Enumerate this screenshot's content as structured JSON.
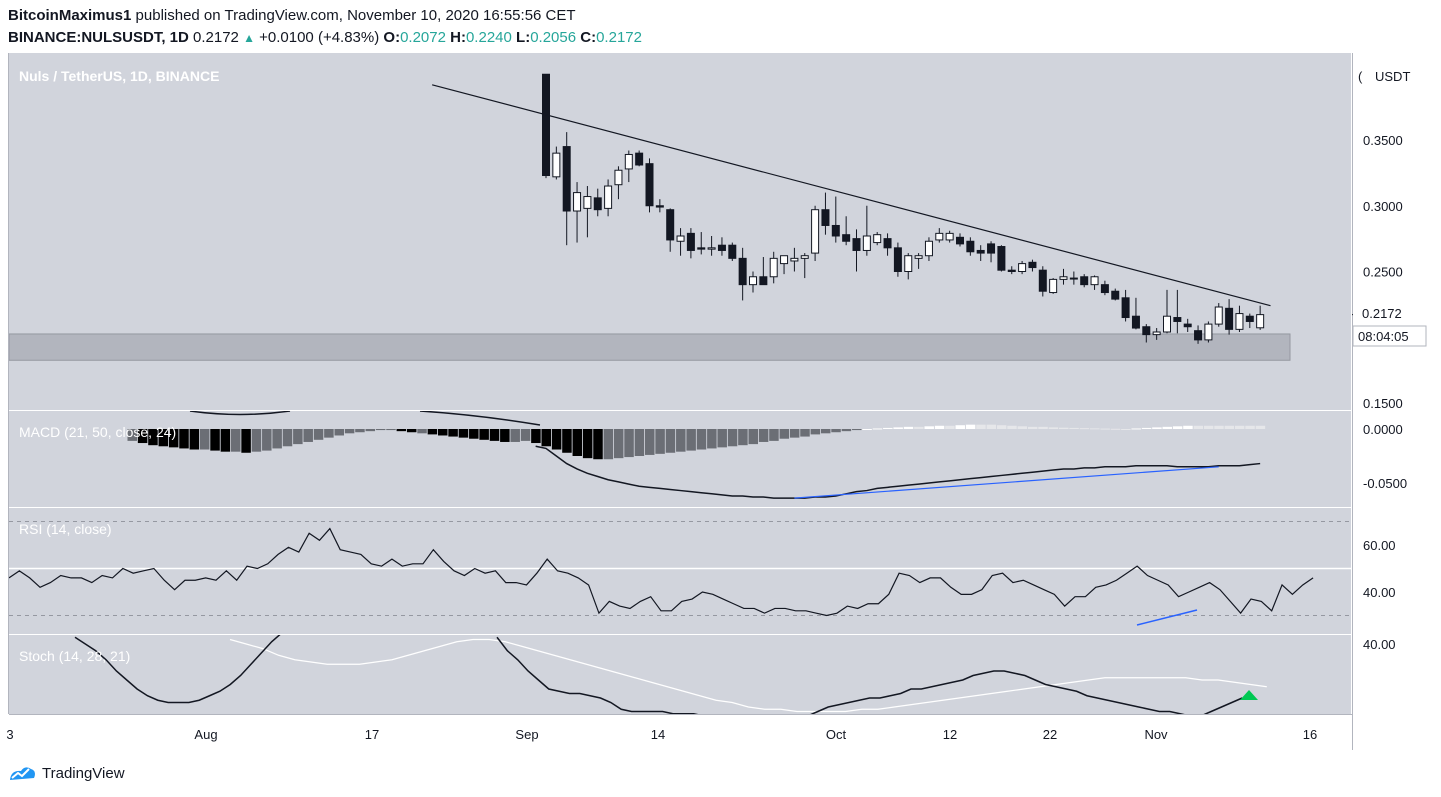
{
  "header": {
    "author": "BitcoinMaximus1",
    "published_text": "published on TradingView.com, November 10, 2020 16:55:56 CET",
    "symbol": "BINANCE:NULSUSDT, 1D",
    "last": "0.2172",
    "change": "+0.0100 (+4.83%)",
    "open_label": "O:",
    "open": "0.2072",
    "high_label": "H:",
    "high": "0.2240",
    "low_label": "L:",
    "low": "0.2056",
    "close_label": "C:",
    "close": "0.2172"
  },
  "footer": {
    "brand": "TradingView"
  },
  "colors": {
    "pane_bg": "#d1d4dc",
    "band": "#b2b5be",
    "up": "#ffffff",
    "down": "#131722",
    "divergence": "#2962ff",
    "signal_arrow": "#00c853",
    "stoch_d": "#ffffff"
  },
  "chart_data": [
    {
      "type": "candlestick",
      "title": "Nuls / TetherUS, 1D, BINANCE",
      "ylabel": "USDT",
      "ylim": [
        0.15,
        0.365
      ],
      "y_ticks": [
        "0.3500",
        "0.3000",
        "0.2500",
        "0.1500"
      ],
      "x_ticks": [
        "3",
        "Aug",
        "17",
        "Sep",
        "14",
        "Oct",
        "12",
        "22",
        "Nov",
        "16"
      ],
      "last_price_label": "0.2172",
      "countdown": "08:04:05",
      "candles_start_date": "2020-09-02",
      "candles_end_date": "2020-11-10",
      "candles": [
        {
          "o": 0.4,
          "h": 0.4,
          "l": 0.321,
          "c": 0.323
        },
        {
          "o": 0.322,
          "h": 0.345,
          "l": 0.32,
          "c": 0.34
        },
        {
          "o": 0.345,
          "h": 0.356,
          "l": 0.27,
          "c": 0.296
        },
        {
          "o": 0.296,
          "h": 0.318,
          "l": 0.272,
          "c": 0.31
        },
        {
          "o": 0.298,
          "h": 0.315,
          "l": 0.276,
          "c": 0.307
        },
        {
          "o": 0.306,
          "h": 0.313,
          "l": 0.292,
          "c": 0.297
        },
        {
          "o": 0.298,
          "h": 0.32,
          "l": 0.292,
          "c": 0.315
        },
        {
          "o": 0.316,
          "h": 0.33,
          "l": 0.305,
          "c": 0.327
        },
        {
          "o": 0.328,
          "h": 0.342,
          "l": 0.318,
          "c": 0.339
        },
        {
          "o": 0.34,
          "h": 0.342,
          "l": 0.33,
          "c": 0.331
        },
        {
          "o": 0.332,
          "h": 0.336,
          "l": 0.295,
          "c": 0.3
        },
        {
          "o": 0.3,
          "h": 0.305,
          "l": 0.295,
          "c": 0.299
        },
        {
          "o": 0.297,
          "h": 0.298,
          "l": 0.265,
          "c": 0.274
        },
        {
          "o": 0.273,
          "h": 0.283,
          "l": 0.262,
          "c": 0.277
        },
        {
          "o": 0.279,
          "h": 0.283,
          "l": 0.26,
          "c": 0.266
        },
        {
          "o": 0.268,
          "h": 0.28,
          "l": 0.263,
          "c": 0.267
        },
        {
          "o": 0.267,
          "h": 0.277,
          "l": 0.262,
          "c": 0.268
        },
        {
          "o": 0.27,
          "h": 0.276,
          "l": 0.262,
          "c": 0.266
        },
        {
          "o": 0.27,
          "h": 0.272,
          "l": 0.258,
          "c": 0.26
        },
        {
          "o": 0.26,
          "h": 0.268,
          "l": 0.228,
          "c": 0.24
        },
        {
          "o": 0.24,
          "h": 0.25,
          "l": 0.234,
          "c": 0.246
        },
        {
          "o": 0.246,
          "h": 0.261,
          "l": 0.24,
          "c": 0.24
        },
        {
          "o": 0.246,
          "h": 0.265,
          "l": 0.241,
          "c": 0.26
        },
        {
          "o": 0.256,
          "h": 0.262,
          "l": 0.248,
          "c": 0.262
        },
        {
          "o": 0.258,
          "h": 0.268,
          "l": 0.25,
          "c": 0.26
        },
        {
          "o": 0.26,
          "h": 0.264,
          "l": 0.245,
          "c": 0.262
        },
        {
          "o": 0.264,
          "h": 0.3,
          "l": 0.258,
          "c": 0.297
        },
        {
          "o": 0.297,
          "h": 0.31,
          "l": 0.278,
          "c": 0.285
        },
        {
          "o": 0.285,
          "h": 0.307,
          "l": 0.272,
          "c": 0.277
        },
        {
          "o": 0.278,
          "h": 0.292,
          "l": 0.27,
          "c": 0.273
        },
        {
          "o": 0.275,
          "h": 0.282,
          "l": 0.25,
          "c": 0.266
        },
        {
          "o": 0.266,
          "h": 0.3,
          "l": 0.262,
          "c": 0.277
        },
        {
          "o": 0.272,
          "h": 0.28,
          "l": 0.27,
          "c": 0.278
        },
        {
          "o": 0.275,
          "h": 0.279,
          "l": 0.262,
          "c": 0.268
        },
        {
          "o": 0.268,
          "h": 0.272,
          "l": 0.246,
          "c": 0.25
        },
        {
          "o": 0.25,
          "h": 0.264,
          "l": 0.244,
          "c": 0.262
        },
        {
          "o": 0.26,
          "h": 0.264,
          "l": 0.252,
          "c": 0.262
        },
        {
          "o": 0.262,
          "h": 0.276,
          "l": 0.258,
          "c": 0.273
        },
        {
          "o": 0.274,
          "h": 0.283,
          "l": 0.272,
          "c": 0.279
        },
        {
          "o": 0.274,
          "h": 0.281,
          "l": 0.272,
          "c": 0.279
        },
        {
          "o": 0.276,
          "h": 0.279,
          "l": 0.269,
          "c": 0.271
        },
        {
          "o": 0.273,
          "h": 0.276,
          "l": 0.262,
          "c": 0.265
        },
        {
          "o": 0.266,
          "h": 0.27,
          "l": 0.258,
          "c": 0.264
        },
        {
          "o": 0.271,
          "h": 0.273,
          "l": 0.257,
          "c": 0.264
        },
        {
          "o": 0.269,
          "h": 0.27,
          "l": 0.25,
          "c": 0.251
        },
        {
          "o": 0.251,
          "h": 0.254,
          "l": 0.248,
          "c": 0.25
        },
        {
          "o": 0.25,
          "h": 0.258,
          "l": 0.248,
          "c": 0.256
        },
        {
          "o": 0.257,
          "h": 0.259,
          "l": 0.25,
          "c": 0.253
        },
        {
          "o": 0.251,
          "h": 0.254,
          "l": 0.231,
          "c": 0.235
        },
        {
          "o": 0.234,
          "h": 0.245,
          "l": 0.233,
          "c": 0.244
        },
        {
          "o": 0.244,
          "h": 0.252,
          "l": 0.24,
          "c": 0.246
        },
        {
          "o": 0.245,
          "h": 0.25,
          "l": 0.24,
          "c": 0.245
        },
        {
          "o": 0.246,
          "h": 0.248,
          "l": 0.238,
          "c": 0.24
        },
        {
          "o": 0.24,
          "h": 0.247,
          "l": 0.236,
          "c": 0.246
        },
        {
          "o": 0.24,
          "h": 0.243,
          "l": 0.232,
          "c": 0.234
        },
        {
          "o": 0.235,
          "h": 0.237,
          "l": 0.228,
          "c": 0.229
        },
        {
          "o": 0.23,
          "h": 0.236,
          "l": 0.212,
          "c": 0.215
        },
        {
          "o": 0.216,
          "h": 0.23,
          "l": 0.206,
          "c": 0.207
        },
        {
          "o": 0.208,
          "h": 0.21,
          "l": 0.196,
          "c": 0.202
        },
        {
          "o": 0.202,
          "h": 0.207,
          "l": 0.198,
          "c": 0.204
        },
        {
          "o": 0.204,
          "h": 0.236,
          "l": 0.203,
          "c": 0.216
        },
        {
          "o": 0.215,
          "h": 0.236,
          "l": 0.203,
          "c": 0.212
        },
        {
          "o": 0.21,
          "h": 0.214,
          "l": 0.204,
          "c": 0.208
        },
        {
          "o": 0.205,
          "h": 0.209,
          "l": 0.195,
          "c": 0.198
        },
        {
          "o": 0.198,
          "h": 0.212,
          "l": 0.196,
          "c": 0.21
        },
        {
          "o": 0.21,
          "h": 0.226,
          "l": 0.208,
          "c": 0.223
        },
        {
          "o": 0.222,
          "h": 0.229,
          "l": 0.202,
          "c": 0.206
        },
        {
          "o": 0.206,
          "h": 0.224,
          "l": 0.204,
          "c": 0.218
        },
        {
          "o": 0.216,
          "h": 0.218,
          "l": 0.207,
          "c": 0.212
        },
        {
          "o": 0.2072,
          "h": 0.224,
          "l": 0.2056,
          "c": 0.2172
        }
      ],
      "trendline": {
        "from_date": "2020-08-22",
        "from_value": 0.392,
        "to_date": "2020-11-11",
        "to_value": 0.224
      },
      "support_zone": [
        0.1825,
        0.2025
      ]
    },
    {
      "type": "bar+line",
      "title": "MACD (21, 50, close, 24)",
      "ylim": [
        -0.067,
        0.006
      ],
      "y_ticks": [
        "0.0000",
        "-0.0500"
      ],
      "histogram_visible_segments": [
        {
          "from": "2020-07-24",
          "to": "2020-08-20",
          "values": [
            -0.011,
            -0.013,
            -0.015,
            -0.016,
            -0.017,
            -0.018,
            -0.019,
            -0.019,
            -0.02,
            -0.021,
            -0.021,
            -0.022,
            -0.021,
            -0.02,
            -0.018,
            -0.016,
            -0.014,
            -0.012,
            -0.01,
            -0.008,
            -0.006,
            -0.004,
            -0.003,
            -0.002,
            -0.001,
            -0.001,
            -0.002,
            -0.003
          ]
        },
        {
          "from": "2020-08-21",
          "to": "2020-11-10",
          "values": [
            -0.004,
            -0.005,
            -0.006,
            -0.007,
            -0.008,
            -0.009,
            -0.01,
            -0.011,
            -0.012,
            -0.012,
            -0.011,
            -0.013,
            -0.016,
            -0.019,
            -0.022,
            -0.025,
            -0.027,
            -0.028,
            -0.028,
            -0.027,
            -0.026,
            -0.025,
            -0.024,
            -0.023,
            -0.022,
            -0.021,
            -0.02,
            -0.019,
            -0.018,
            -0.017,
            -0.016,
            -0.015,
            -0.014,
            -0.012,
            -0.011,
            -0.009,
            -0.008,
            -0.007,
            -0.005,
            -0.004,
            -0.003,
            -0.002,
            -0.001,
            0.0,
            0.0005,
            0.001,
            0.0015,
            0.002,
            0.002,
            0.0025,
            0.003,
            0.003,
            0.0035,
            0.004,
            0.004,
            0.004,
            0.0035,
            0.003,
            0.0025,
            0.002,
            0.002,
            0.0015,
            0.0012,
            0.001,
            0.0008,
            0.0006,
            0.0004,
            0.0002,
            0.0,
            0.0005,
            0.001,
            0.0015,
            0.002,
            0.0025,
            0.003,
            0.003,
            0.003,
            0.003,
            0.003,
            0.003,
            0.003,
            0.003
          ]
        }
      ],
      "signal_line": {
        "from": "2020-09-01",
        "to": "2020-11-10",
        "values": [
          -0.016,
          -0.018,
          -0.025,
          -0.032,
          -0.037,
          -0.041,
          -0.044,
          -0.047,
          -0.049,
          -0.051,
          -0.053,
          -0.054,
          -0.055,
          -0.056,
          -0.057,
          -0.058,
          -0.059,
          -0.06,
          -0.061,
          -0.062,
          -0.062,
          -0.063,
          -0.063,
          -0.064,
          -0.064,
          -0.064,
          -0.064,
          -0.063,
          -0.063,
          -0.062,
          -0.06,
          -0.058,
          -0.057,
          -0.055,
          -0.054,
          -0.053,
          -0.052,
          -0.051,
          -0.05,
          -0.049,
          -0.048,
          -0.047,
          -0.046,
          -0.045,
          -0.044,
          -0.043,
          -0.042,
          -0.041,
          -0.04,
          -0.039,
          -0.038,
          -0.037,
          -0.037,
          -0.036,
          -0.036,
          -0.035,
          -0.035,
          -0.035,
          -0.034,
          -0.034,
          -0.034,
          -0.034,
          -0.035,
          -0.035,
          -0.035,
          -0.035,
          -0.034,
          -0.034,
          -0.034,
          -0.033,
          -0.032
        ]
      },
      "divergence_line": {
        "from": {
          "date": "2020-09-26",
          "value": -0.064
        },
        "to": {
          "date": "2020-11-06",
          "value": -0.035
        }
      }
    },
    {
      "type": "line",
      "title": "RSI (14, close)",
      "ylim": [
        26,
        72
      ],
      "y_ticks": [
        "60.00",
        "40.00"
      ],
      "bands": [
        70,
        50,
        30
      ],
      "from": "2020-07-24",
      "to": "2020-11-10",
      "values": [
        46,
        49,
        46,
        42,
        44,
        47,
        46,
        46,
        44,
        47,
        46,
        50,
        48,
        49,
        50,
        45,
        41,
        45,
        45,
        46,
        45,
        49,
        45,
        51,
        50,
        52,
        56,
        59,
        57,
        65,
        62,
        67,
        58,
        57,
        56,
        52,
        51,
        54,
        51,
        52,
        52,
        58,
        53,
        49,
        47,
        50,
        48,
        49,
        44,
        44,
        43,
        48,
        54,
        49,
        48,
        46,
        43,
        31,
        36,
        34,
        33,
        36,
        38,
        32,
        32,
        36,
        37,
        40,
        39,
        37,
        35,
        33,
        33,
        31,
        33,
        33,
        32,
        32,
        31,
        30,
        31,
        34,
        33,
        35,
        35,
        39,
        48,
        47,
        44,
        46,
        46,
        42,
        39,
        39,
        41,
        47,
        48,
        44,
        45,
        43,
        41,
        39,
        34,
        38,
        38,
        42,
        43,
        45,
        48,
        51,
        47,
        45,
        43,
        38,
        40,
        42,
        44,
        41,
        36,
        31,
        37,
        36,
        32,
        43,
        39,
        43,
        46
      ]
    },
    {
      "type": "line",
      "title": "Stoch (14, 28, 21)",
      "ylim": [
        0,
        55
      ],
      "y_ticks": [
        "40.00"
      ],
      "series": [
        {
          "from": "2020-07-15",
          "to": "2020-08-12",
          "values": [
            43,
            40,
            37,
            33,
            28,
            24,
            20,
            17,
            15,
            14,
            14,
            14,
            15,
            17,
            19,
            22,
            26,
            31,
            36,
            41,
            45,
            48,
            51
          ]
        },
        {
          "from": "2020-08-21",
          "to": "2020-11-10",
          "values": [
            43,
            37,
            33,
            28,
            24,
            20,
            19,
            18,
            18,
            17,
            16,
            14,
            11,
            10,
            10,
            10,
            10,
            9,
            9,
            9,
            8,
            7,
            6,
            4,
            3,
            3,
            3,
            4,
            5,
            6,
            8,
            10,
            12,
            13,
            14,
            15,
            16,
            16,
            17,
            18,
            20,
            20,
            21,
            22,
            23,
            24,
            26,
            27,
            28,
            28,
            27,
            26,
            24,
            22,
            21,
            20,
            19,
            17,
            16,
            15,
            14,
            13,
            12,
            11,
            10,
            10,
            9,
            8,
            8,
            10,
            12,
            14,
            16
          ]
        },
        {
          "from": "2020-08-12",
          "to": "2020-11-10",
          "values": [
            42,
            40,
            38,
            35,
            33,
            32,
            31,
            31,
            31,
            32,
            33,
            35,
            37,
            39,
            41,
            42,
            42,
            41,
            39,
            37,
            35,
            33,
            31,
            29,
            27,
            25,
            23,
            21,
            19,
            17,
            15,
            14,
            12,
            11,
            11,
            10,
            10,
            10,
            10,
            11,
            11,
            12,
            13,
            14,
            15,
            16,
            17,
            18,
            19,
            20,
            21,
            22,
            23,
            24,
            25,
            25,
            25,
            25,
            25,
            25,
            24,
            24,
            23,
            22,
            21
          ]
        }
      ],
      "signal": "up-arrow"
    }
  ]
}
